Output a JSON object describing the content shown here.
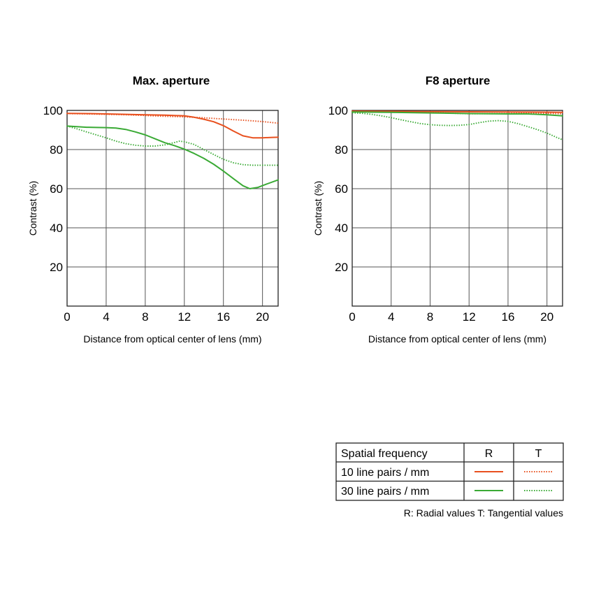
{
  "colors": {
    "orange": "#e8501e",
    "green": "#3aaa35",
    "grid": "#555555",
    "frame": "#222222"
  },
  "chart_data": [
    {
      "type": "line",
      "title": "Max. aperture",
      "xlabel": "Distance from optical center of lens (mm)",
      "ylabel": "Contrast (%)",
      "xlim": [
        0,
        21.6
      ],
      "ylim": [
        0,
        100
      ],
      "xticks": [
        0,
        4,
        8,
        12,
        16,
        20
      ],
      "yticks": [
        20,
        40,
        60,
        80,
        100
      ],
      "grid": true,
      "series": [
        {
          "frequency": "10 line pairs / mm",
          "component": "R",
          "color": "orange",
          "style": "solid",
          "x": [
            0,
            2,
            4,
            6,
            8,
            10,
            12,
            13,
            14,
            15,
            16,
            17,
            18,
            19,
            20,
            21,
            21.6
          ],
          "y": [
            98.5,
            98.4,
            98.2,
            98,
            97.8,
            97.6,
            97.2,
            96.5,
            95.5,
            94.2,
            92.2,
            89.5,
            87,
            86,
            86,
            86.2,
            86.3
          ]
        },
        {
          "frequency": "10 line pairs / mm",
          "component": "T",
          "color": "orange",
          "style": "dotted",
          "x": [
            0,
            2,
            4,
            6,
            8,
            10,
            12,
            14,
            16,
            18,
            20,
            21.6
          ],
          "y": [
            98.4,
            98.2,
            98,
            97.8,
            97.4,
            97,
            96.7,
            96.2,
            95.6,
            95,
            94.3,
            93.5
          ]
        },
        {
          "frequency": "30 line pairs / mm",
          "component": "R",
          "color": "green",
          "style": "solid",
          "x": [
            0,
            1,
            2,
            3,
            4,
            5,
            6,
            7,
            8,
            9,
            10,
            11,
            12,
            13,
            14,
            15,
            16,
            17,
            18,
            18.7,
            19.5,
            20.5,
            21.6
          ],
          "y": [
            92,
            91.7,
            91.4,
            91.3,
            91.2,
            91,
            90.3,
            89,
            87.5,
            85.5,
            83.5,
            82,
            80.2,
            78,
            75.5,
            72.5,
            69,
            65.2,
            61.5,
            60,
            60.6,
            62.5,
            64.5
          ]
        },
        {
          "frequency": "30 line pairs / mm",
          "component": "T",
          "color": "green",
          "style": "dotted",
          "x": [
            0,
            1,
            2,
            3,
            4,
            5,
            6,
            7,
            8,
            9,
            10,
            11,
            11.5,
            12,
            13,
            14,
            15,
            16,
            17,
            18,
            19,
            20,
            21.6
          ],
          "y": [
            92,
            90.6,
            89,
            87.5,
            86,
            84.3,
            83,
            82.2,
            81.8,
            81.8,
            82.4,
            83.6,
            84.3,
            84,
            82.6,
            80,
            77.5,
            75,
            73.3,
            72.3,
            72,
            72,
            72
          ]
        }
      ]
    },
    {
      "type": "line",
      "title": "F8 aperture",
      "xlabel": "Distance from optical center of lens (mm)",
      "ylabel": "Contrast (%)",
      "xlim": [
        0,
        21.6
      ],
      "ylim": [
        0,
        100
      ],
      "xticks": [
        0,
        4,
        8,
        12,
        16,
        20
      ],
      "yticks": [
        20,
        40,
        60,
        80,
        100
      ],
      "grid": true,
      "series": [
        {
          "frequency": "10 line pairs / mm",
          "component": "R",
          "color": "orange",
          "style": "solid",
          "x": [
            0,
            4,
            8,
            12,
            16,
            20,
            21.6
          ],
          "y": [
            99.6,
            99.5,
            99.4,
            99.3,
            99.2,
            99.1,
            99
          ]
        },
        {
          "frequency": "10 line pairs / mm",
          "component": "T",
          "color": "orange",
          "style": "dotted",
          "x": [
            0,
            4,
            8,
            10,
            12,
            16,
            18,
            20,
            21.6
          ],
          "y": [
            99.4,
            99.3,
            99,
            98.6,
            98.3,
            98.4,
            98.7,
            98.5,
            98.3
          ]
        },
        {
          "frequency": "30 line pairs / mm",
          "component": "R",
          "color": "green",
          "style": "solid",
          "x": [
            0,
            4,
            8,
            12,
            16,
            18,
            20,
            21.6
          ],
          "y": [
            99.2,
            99,
            98.7,
            98.4,
            98.2,
            98.2,
            97.8,
            97.2
          ]
        },
        {
          "frequency": "30 line pairs / mm",
          "component": "T",
          "color": "green",
          "style": "dotted",
          "x": [
            0,
            1,
            2,
            3,
            4,
            5,
            6,
            7,
            8,
            9,
            10,
            11,
            12,
            13,
            14,
            15,
            16,
            17,
            18,
            19,
            20,
            21,
            21.6
          ],
          "y": [
            98.8,
            98.5,
            98,
            97.2,
            96.3,
            95.2,
            94.2,
            93.3,
            92.7,
            92.4,
            92.3,
            92.4,
            92.8,
            93.7,
            94.5,
            94.8,
            94.4,
            93.3,
            91.8,
            90.2,
            88.4,
            86.2,
            85
          ]
        }
      ]
    }
  ],
  "legend": {
    "header": [
      "Spatial frequency",
      "R",
      "T"
    ],
    "rows": [
      {
        "label": "10 line pairs / mm",
        "color": "orange"
      },
      {
        "label": "30 line pairs / mm",
        "color": "green"
      }
    ],
    "note": "R: Radial values  T: Tangential values"
  }
}
